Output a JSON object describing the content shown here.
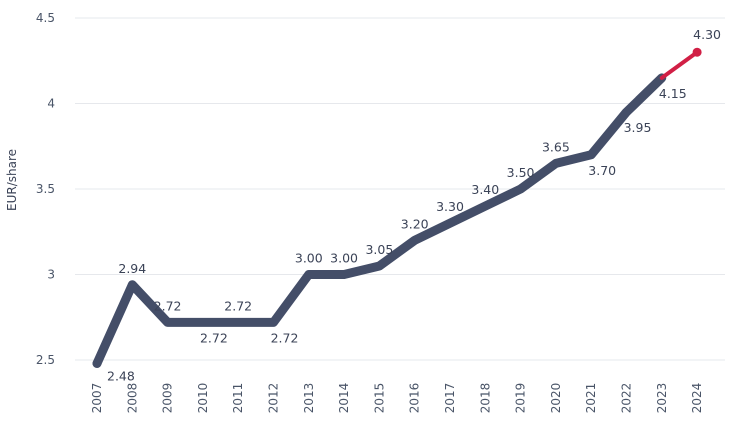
{
  "chart_data": {
    "type": "line",
    "ylabel": "EUR/share",
    "xlabel": "",
    "ylim": [
      2.5,
      4.5
    ],
    "yticks": [
      "2.5",
      "3",
      "3.5",
      "4",
      "4.5"
    ],
    "grid": "horizontal",
    "categories": [
      "2007",
      "2008",
      "2009",
      "2010",
      "2011",
      "2012",
      "2013",
      "2014",
      "2015",
      "2016",
      "2017",
      "2018",
      "2019",
      "2020",
      "2021",
      "2022",
      "2023",
      "2024"
    ],
    "values": [
      2.48,
      2.94,
      2.72,
      2.72,
      2.72,
      2.72,
      3.0,
      3.0,
      3.05,
      3.2,
      3.3,
      3.4,
      3.5,
      3.65,
      3.7,
      3.95,
      4.15,
      4.3
    ],
    "value_labels": [
      "2.48",
      "2.94",
      "2.72",
      "2.72",
      "2.72",
      "2.72",
      "3.00",
      "3.00",
      "3.05",
      "3.20",
      "3.30",
      "3.40",
      "3.50",
      "3.65",
      "3.70",
      "3.95",
      "4.15",
      "4.30"
    ],
    "label_positions": [
      "below",
      "above",
      "above",
      "below",
      "above",
      "below",
      "above",
      "above",
      "above",
      "above",
      "above",
      "above",
      "above",
      "above",
      "below",
      "below",
      "below",
      "above"
    ],
    "colors": {
      "line": "#444e68",
      "highlight": "#d11f45",
      "grid": "#e6e8ec",
      "text": "#3b4357"
    }
  }
}
